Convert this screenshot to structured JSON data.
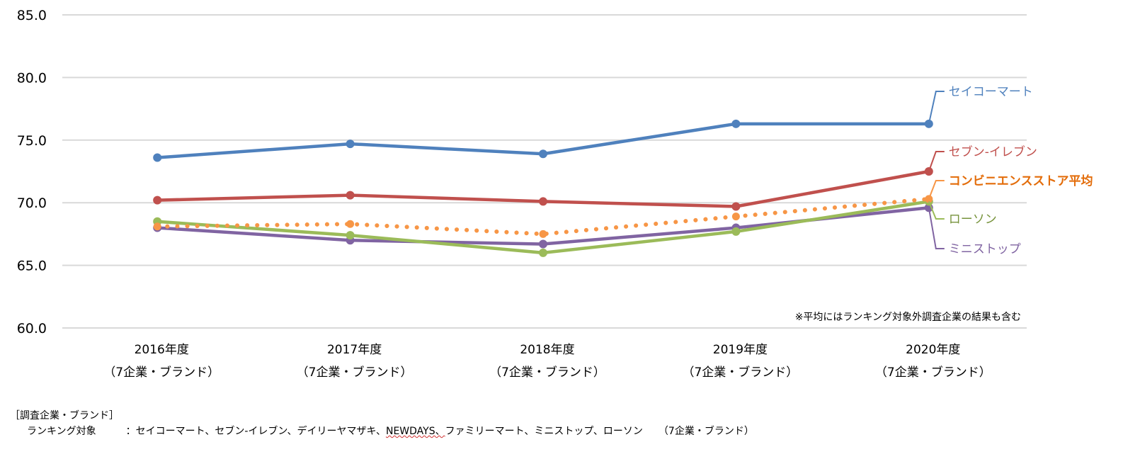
{
  "chart_data": {
    "type": "line",
    "title": "",
    "xlabel": "",
    "ylabel": "",
    "ylim": [
      60,
      85
    ],
    "yticks": [
      "60.0",
      "65.0",
      "70.0",
      "75.0",
      "80.0",
      "85.0"
    ],
    "grid": true,
    "categories": [
      {
        "year": "2016年度",
        "sub": "（7企業・ブランド）"
      },
      {
        "year": "2017年度",
        "sub": "（7企業・ブランド）"
      },
      {
        "year": "2018年度",
        "sub": "（7企業・ブランド）"
      },
      {
        "year": "2019年度",
        "sub": "（7企業・ブランド）"
      },
      {
        "year": "2020年度",
        "sub": "（7企業・ブランド）"
      }
    ],
    "series": [
      {
        "name": "セイコーマート",
        "color": "#4f81bd",
        "label_color": "#4f81bd",
        "style": "solid",
        "bold_label": false,
        "values": [
          73.6,
          74.7,
          73.9,
          76.3,
          76.3
        ]
      },
      {
        "name": "セブン-イレブン",
        "color": "#c0504d",
        "label_color": "#c0504d",
        "style": "solid",
        "bold_label": false,
        "values": [
          70.2,
          70.6,
          70.1,
          69.7,
          72.5
        ]
      },
      {
        "name": "コンビニエンスストア平均",
        "color": "#f79646",
        "label_color": "#e36c09",
        "style": "dotted",
        "bold_label": true,
        "values": [
          68.1,
          68.3,
          67.5,
          68.9,
          70.3
        ]
      },
      {
        "name": "ローソン",
        "color": "#9bbb59",
        "label_color": "#77933c",
        "style": "solid",
        "bold_label": false,
        "values": [
          68.5,
          67.4,
          66.0,
          67.7,
          70.1
        ]
      },
      {
        "name": "ミニストップ",
        "color": "#8064a2",
        "label_color": "#8064a2",
        "style": "solid",
        "bold_label": false,
        "values": [
          68.0,
          67.0,
          66.7,
          68.0,
          69.6
        ]
      }
    ],
    "annotation": "※平均にはランキング対象外調査企業の結果も含む",
    "legend": "right (labels at line ends)"
  },
  "footer": {
    "title": "［調査企業・ブランド］",
    "label": "ランキング対象",
    "separator": "：",
    "list_before": "セイコーマート、セブン-イレブン、デイリーヤマザキ、",
    "list_squiggle": "NEWDAYS、",
    "list_after": "ファミリーマート、ミニストップ、ローソン",
    "count": "（7企業・ブランド）"
  }
}
